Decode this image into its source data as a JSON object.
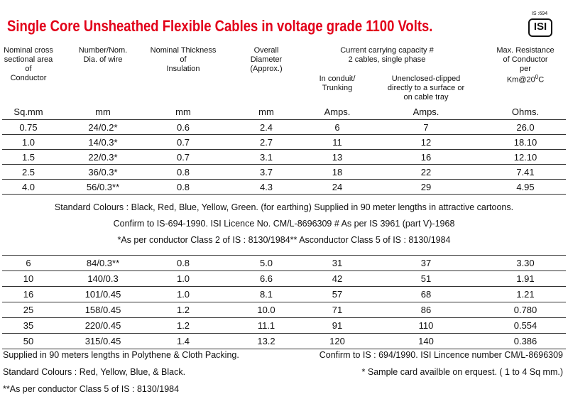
{
  "header": {
    "title": "Single Core Unsheathed Flexible Cables in voltage grade 1100 Volts.",
    "logo_label": "IS :694",
    "logo_text": "ISI"
  },
  "columns": [
    {
      "heading": [
        "Nominal cross",
        "sectional area",
        "of",
        "Conductor"
      ],
      "unit": "Sq.mm"
    },
    {
      "heading": [
        "Number/Nom.",
        "Dia. of wire"
      ],
      "unit": "mm"
    },
    {
      "heading": [
        "Nominal Thickness",
        "of",
        "Insulation"
      ],
      "unit": "mm"
    },
    {
      "heading": [
        "Overall",
        "Diameter",
        "(Approx.)"
      ],
      "unit": "mm"
    },
    {
      "heading": [
        "In conduit/",
        "Trunking"
      ],
      "unit": "Amps."
    },
    {
      "heading": [
        "Unenclosed-clipped",
        "directly to a surface or",
        "on cable tray"
      ],
      "unit": "Amps."
    },
    {
      "heading": [
        "Max. Resistance",
        "of Conductor",
        "per"
      ],
      "heading_last": {
        "prefix": "Km@20",
        "sup": "0",
        "suffix": "C"
      },
      "unit": "Ohms."
    }
  ],
  "group_heading": [
    "Current carrying capacity #",
    "2 cables, single phase"
  ],
  "table1": {
    "rows": [
      [
        "0.75",
        "24/0.2*",
        "0.6",
        "2.4",
        "6",
        "7",
        "26.0"
      ],
      [
        "1.0",
        "14/0.3*",
        "0.7",
        "2.7",
        "11",
        "12",
        "18.10"
      ],
      [
        "1.5",
        "22/0.3*",
        "0.7",
        "3.1",
        "13",
        "16",
        "12.10"
      ],
      [
        "2.5",
        "36/0.3*",
        "0.8",
        "3.7",
        "18",
        "22",
        "7.41"
      ],
      [
        "4.0",
        "56/0.3**",
        "0.8",
        "4.3",
        "24",
        "29",
        "4.95"
      ]
    ]
  },
  "notes": [
    "Standard Colours : Black, Red, Blue, Yellow, Green. (for earthing) Supplied in 90 meter lengths in attractive cartoons.",
    "Confirm to IS-694-1990. ISI Licence No. CM/L-8696309 # As per IS 3961 (part V)-1968",
    "*As per conductor Class 2 of IS : 8130/1984** Asconductor Class 5 of IS : 8130/1984"
  ],
  "table2": {
    "rows": [
      [
        "6",
        "84/0.3**",
        "0.8",
        "5.0",
        "31",
        "37",
        "3.30"
      ],
      [
        "10",
        "140/0.3",
        "1.0",
        "6.6",
        "42",
        "51",
        "1.91"
      ],
      [
        "16",
        "101/0.45",
        "1.0",
        "8.1",
        "57",
        "68",
        "1.21"
      ],
      [
        "25",
        "158/0.45",
        "1.2",
        "10.0",
        "71",
        "86",
        "0.780"
      ],
      [
        "35",
        "220/0.45",
        "1.2",
        "11.1",
        "91",
        "110",
        "0.554"
      ],
      [
        "50",
        "315/0.45",
        "1.4",
        "13.2",
        "120",
        "140",
        "0.386"
      ]
    ]
  },
  "footer": {
    "left": [
      "Supplied in 90 meters lengths in Polythene & Cloth Packing.",
      "Standard Colours : Red, Yellow, Blue, & Black.",
      "**As per conductor Class 5 of IS : 8130/1984"
    ],
    "right": [
      "Confirm to IS : 694/1990. ISI Lincence number CM/L-8696309",
      "* Sample card availble on erquest. ( 1 to 4 Sq mm.)"
    ]
  }
}
